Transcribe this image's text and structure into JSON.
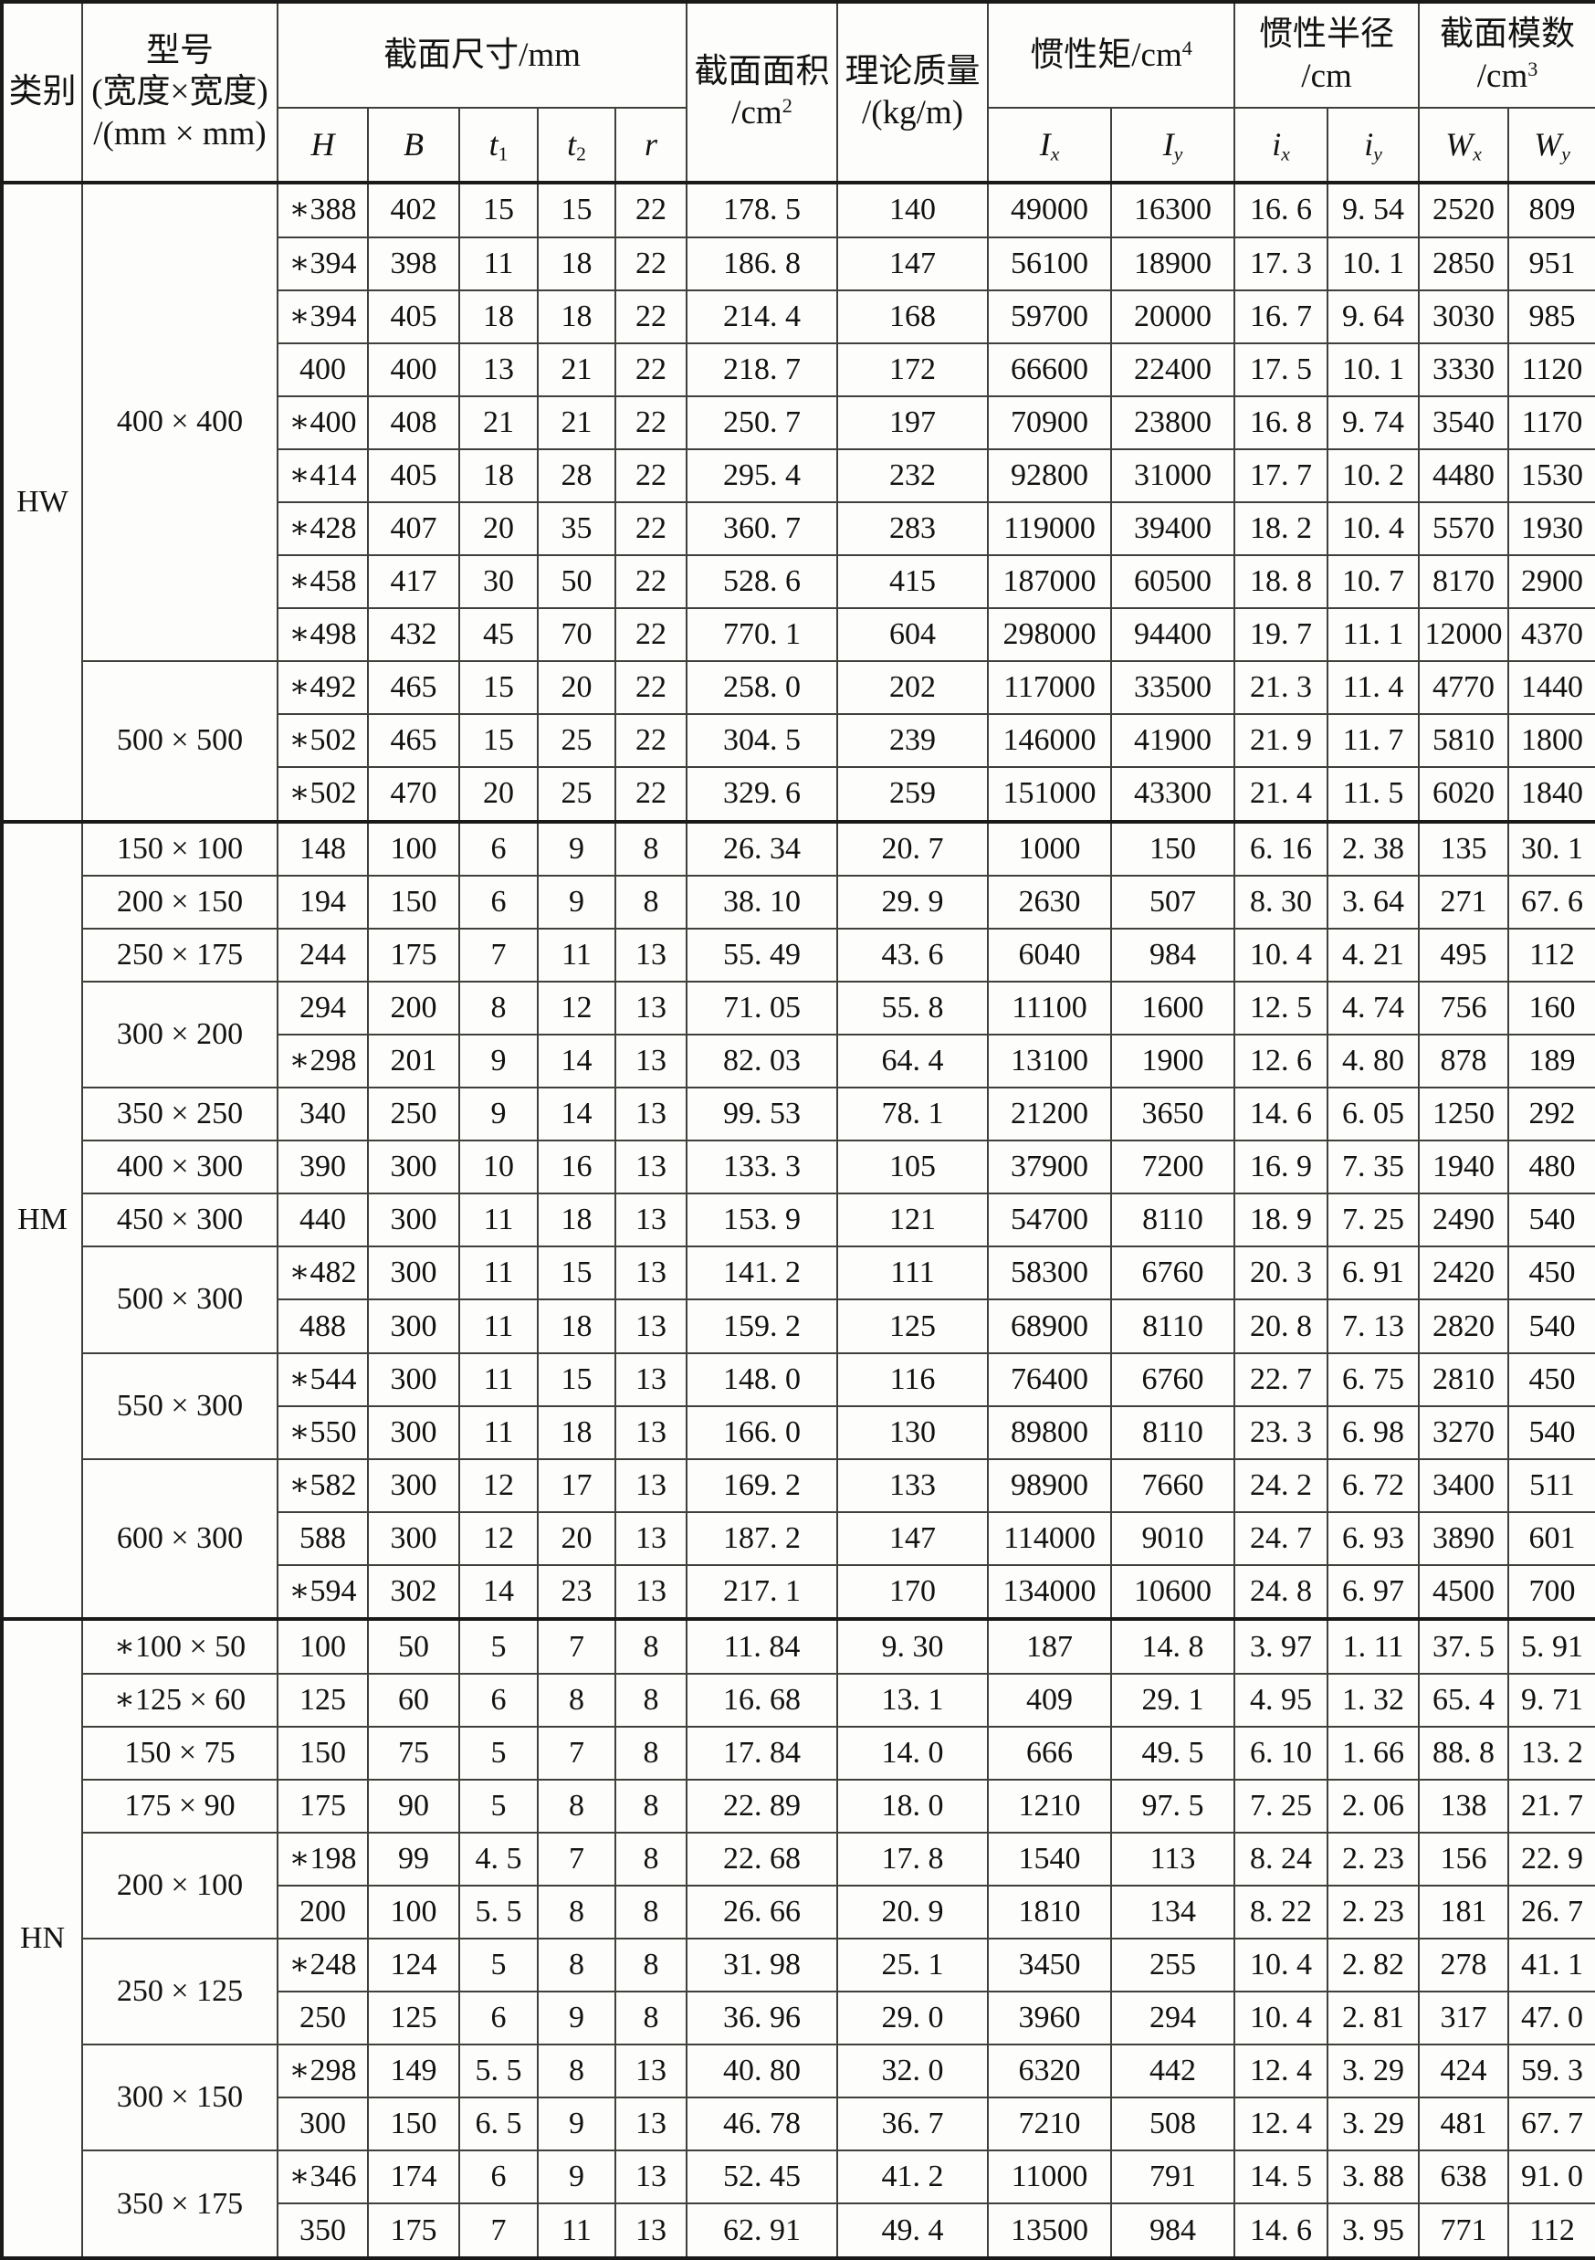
{
  "table": {
    "headers": {
      "category": "类别",
      "model": {
        "line1": "型号",
        "line2": "(宽度×宽度)",
        "line3": "/(mm × mm)"
      },
      "section_dims": {
        "title": "截面尺寸/mm",
        "cols": [
          {
            "base": "H",
            "sub": ""
          },
          {
            "base": "B",
            "sub": ""
          },
          {
            "base": "t",
            "sub": "1"
          },
          {
            "base": "t",
            "sub": "2"
          },
          {
            "base": "r",
            "sub": ""
          }
        ]
      },
      "area": {
        "line1": "截面面积",
        "unit": "/cm",
        "sup": "2"
      },
      "mass": {
        "line1": "理论质量",
        "line2": "/(kg/m)"
      },
      "inertia": {
        "title": "惯性矩/cm",
        "sup": "4",
        "cols": [
          {
            "base": "I",
            "sub": "x"
          },
          {
            "base": "I",
            "sub": "y"
          }
        ]
      },
      "radius": {
        "line1": "惯性半径",
        "line2": "/cm",
        "cols": [
          {
            "base": "i",
            "sub": "x"
          },
          {
            "base": "i",
            "sub": "y"
          }
        ]
      },
      "modulus": {
        "line1": "截面模数",
        "unit": "/cm",
        "sup": "3",
        "cols": [
          {
            "base": "W",
            "sub": "x"
          },
          {
            "base": "W",
            "sub": "y"
          }
        ]
      }
    },
    "groups": [
      {
        "category": "HW",
        "blocks": [
          {
            "model": "400 × 400",
            "rows": 9
          },
          {
            "model": "500 × 500",
            "rows": 3
          }
        ]
      },
      {
        "category": "HM",
        "blocks": [
          {
            "model": "150 × 100",
            "rows": 1
          },
          {
            "model": "200 × 150",
            "rows": 1
          },
          {
            "model": "250 × 175",
            "rows": 1
          },
          {
            "model": "300 × 200",
            "rows": 2
          },
          {
            "model": "350 × 250",
            "rows": 1
          },
          {
            "model": "400 × 300",
            "rows": 1
          },
          {
            "model": "450 × 300",
            "rows": 1
          },
          {
            "model": "500 × 300",
            "rows": 2
          },
          {
            "model": "550 × 300",
            "rows": 2
          },
          {
            "model": "600 × 300",
            "rows": 3
          }
        ]
      },
      {
        "category": "HN",
        "blocks": [
          {
            "model": "∗100 × 50",
            "rows": 1
          },
          {
            "model": "∗125 × 60",
            "rows": 1
          },
          {
            "model": "150 × 75",
            "rows": 1
          },
          {
            "model": "175 × 90",
            "rows": 1
          },
          {
            "model": "200 × 100",
            "rows": 2
          },
          {
            "model": "250 × 125",
            "rows": 2
          },
          {
            "model": "300 × 150",
            "rows": 2
          },
          {
            "model": "350 × 175",
            "rows": 2
          }
        ]
      }
    ],
    "rows": [
      [
        "∗388",
        "402",
        "15",
        "15",
        "22",
        "178. 5",
        "140",
        "49000",
        "16300",
        "16. 6",
        "9. 54",
        "2520",
        "809"
      ],
      [
        "∗394",
        "398",
        "11",
        "18",
        "22",
        "186. 8",
        "147",
        "56100",
        "18900",
        "17. 3",
        "10. 1",
        "2850",
        "951"
      ],
      [
        "∗394",
        "405",
        "18",
        "18",
        "22",
        "214. 4",
        "168",
        "59700",
        "20000",
        "16. 7",
        "9. 64",
        "3030",
        "985"
      ],
      [
        "400",
        "400",
        "13",
        "21",
        "22",
        "218. 7",
        "172",
        "66600",
        "22400",
        "17. 5",
        "10. 1",
        "3330",
        "1120"
      ],
      [
        "∗400",
        "408",
        "21",
        "21",
        "22",
        "250. 7",
        "197",
        "70900",
        "23800",
        "16. 8",
        "9. 74",
        "3540",
        "1170"
      ],
      [
        "∗414",
        "405",
        "18",
        "28",
        "22",
        "295. 4",
        "232",
        "92800",
        "31000",
        "17. 7",
        "10. 2",
        "4480",
        "1530"
      ],
      [
        "∗428",
        "407",
        "20",
        "35",
        "22",
        "360. 7",
        "283",
        "119000",
        "39400",
        "18. 2",
        "10. 4",
        "5570",
        "1930"
      ],
      [
        "∗458",
        "417",
        "30",
        "50",
        "22",
        "528. 6",
        "415",
        "187000",
        "60500",
        "18. 8",
        "10. 7",
        "8170",
        "2900"
      ],
      [
        "∗498",
        "432",
        "45",
        "70",
        "22",
        "770. 1",
        "604",
        "298000",
        "94400",
        "19. 7",
        "11. 1",
        "12000",
        "4370"
      ],
      [
        "∗492",
        "465",
        "15",
        "20",
        "22",
        "258. 0",
        "202",
        "117000",
        "33500",
        "21. 3",
        "11. 4",
        "4770",
        "1440"
      ],
      [
        "∗502",
        "465",
        "15",
        "25",
        "22",
        "304. 5",
        "239",
        "146000",
        "41900",
        "21. 9",
        "11. 7",
        "5810",
        "1800"
      ],
      [
        "∗502",
        "470",
        "20",
        "25",
        "22",
        "329. 6",
        "259",
        "151000",
        "43300",
        "21. 4",
        "11. 5",
        "6020",
        "1840"
      ],
      [
        "148",
        "100",
        "6",
        "9",
        "8",
        "26. 34",
        "20. 7",
        "1000",
        "150",
        "6. 16",
        "2. 38",
        "135",
        "30. 1"
      ],
      [
        "194",
        "150",
        "6",
        "9",
        "8",
        "38. 10",
        "29. 9",
        "2630",
        "507",
        "8. 30",
        "3. 64",
        "271",
        "67. 6"
      ],
      [
        "244",
        "175",
        "7",
        "11",
        "13",
        "55. 49",
        "43. 6",
        "6040",
        "984",
        "10. 4",
        "4. 21",
        "495",
        "112"
      ],
      [
        "294",
        "200",
        "8",
        "12",
        "13",
        "71. 05",
        "55. 8",
        "11100",
        "1600",
        "12. 5",
        "4. 74",
        "756",
        "160"
      ],
      [
        "∗298",
        "201",
        "9",
        "14",
        "13",
        "82. 03",
        "64. 4",
        "13100",
        "1900",
        "12. 6",
        "4. 80",
        "878",
        "189"
      ],
      [
        "340",
        "250",
        "9",
        "14",
        "13",
        "99. 53",
        "78. 1",
        "21200",
        "3650",
        "14. 6",
        "6. 05",
        "1250",
        "292"
      ],
      [
        "390",
        "300",
        "10",
        "16",
        "13",
        "133. 3",
        "105",
        "37900",
        "7200",
        "16. 9",
        "7. 35",
        "1940",
        "480"
      ],
      [
        "440",
        "300",
        "11",
        "18",
        "13",
        "153. 9",
        "121",
        "54700",
        "8110",
        "18. 9",
        "7. 25",
        "2490",
        "540"
      ],
      [
        "∗482",
        "300",
        "11",
        "15",
        "13",
        "141. 2",
        "111",
        "58300",
        "6760",
        "20. 3",
        "6. 91",
        "2420",
        "450"
      ],
      [
        "488",
        "300",
        "11",
        "18",
        "13",
        "159. 2",
        "125",
        "68900",
        "8110",
        "20. 8",
        "7. 13",
        "2820",
        "540"
      ],
      [
        "∗544",
        "300",
        "11",
        "15",
        "13",
        "148. 0",
        "116",
        "76400",
        "6760",
        "22. 7",
        "6. 75",
        "2810",
        "450"
      ],
      [
        "∗550",
        "300",
        "11",
        "18",
        "13",
        "166. 0",
        "130",
        "89800",
        "8110",
        "23. 3",
        "6. 98",
        "3270",
        "540"
      ],
      [
        "∗582",
        "300",
        "12",
        "17",
        "13",
        "169. 2",
        "133",
        "98900",
        "7660",
        "24. 2",
        "6. 72",
        "3400",
        "511"
      ],
      [
        "588",
        "300",
        "12",
        "20",
        "13",
        "187. 2",
        "147",
        "114000",
        "9010",
        "24. 7",
        "6. 93",
        "3890",
        "601"
      ],
      [
        "∗594",
        "302",
        "14",
        "23",
        "13",
        "217. 1",
        "170",
        "134000",
        "10600",
        "24. 8",
        "6. 97",
        "4500",
        "700"
      ],
      [
        "100",
        "50",
        "5",
        "7",
        "8",
        "11. 84",
        "9. 30",
        "187",
        "14. 8",
        "3. 97",
        "1. 11",
        "37. 5",
        "5. 91"
      ],
      [
        "125",
        "60",
        "6",
        "8",
        "8",
        "16. 68",
        "13. 1",
        "409",
        "29. 1",
        "4. 95",
        "1. 32",
        "65. 4",
        "9. 71"
      ],
      [
        "150",
        "75",
        "5",
        "7",
        "8",
        "17. 84",
        "14. 0",
        "666",
        "49. 5",
        "6. 10",
        "1. 66",
        "88. 8",
        "13. 2"
      ],
      [
        "175",
        "90",
        "5",
        "8",
        "8",
        "22. 89",
        "18. 0",
        "1210",
        "97. 5",
        "7. 25",
        "2. 06",
        "138",
        "21. 7"
      ],
      [
        "∗198",
        "99",
        "4. 5",
        "7",
        "8",
        "22. 68",
        "17. 8",
        "1540",
        "113",
        "8. 24",
        "2. 23",
        "156",
        "22. 9"
      ],
      [
        "200",
        "100",
        "5. 5",
        "8",
        "8",
        "26. 66",
        "20. 9",
        "1810",
        "134",
        "8. 22",
        "2. 23",
        "181",
        "26. 7"
      ],
      [
        "∗248",
        "124",
        "5",
        "8",
        "8",
        "31. 98",
        "25. 1",
        "3450",
        "255",
        "10. 4",
        "2. 82",
        "278",
        "41. 1"
      ],
      [
        "250",
        "125",
        "6",
        "9",
        "8",
        "36. 96",
        "29. 0",
        "3960",
        "294",
        "10. 4",
        "2. 81",
        "317",
        "47. 0"
      ],
      [
        "∗298",
        "149",
        "5. 5",
        "8",
        "13",
        "40. 80",
        "32. 0",
        "6320",
        "442",
        "12. 4",
        "3. 29",
        "424",
        "59. 3"
      ],
      [
        "300",
        "150",
        "6. 5",
        "9",
        "13",
        "46. 78",
        "36. 7",
        "7210",
        "508",
        "12. 4",
        "3. 29",
        "481",
        "67. 7"
      ],
      [
        "∗346",
        "174",
        "6",
        "9",
        "13",
        "52. 45",
        "41. 2",
        "11000",
        "791",
        "14. 5",
        "3. 88",
        "638",
        "91. 0"
      ],
      [
        "350",
        "175",
        "7",
        "11",
        "13",
        "62. 91",
        "49. 4",
        "13500",
        "984",
        "14. 6",
        "3. 95",
        "771",
        "112"
      ]
    ]
  }
}
